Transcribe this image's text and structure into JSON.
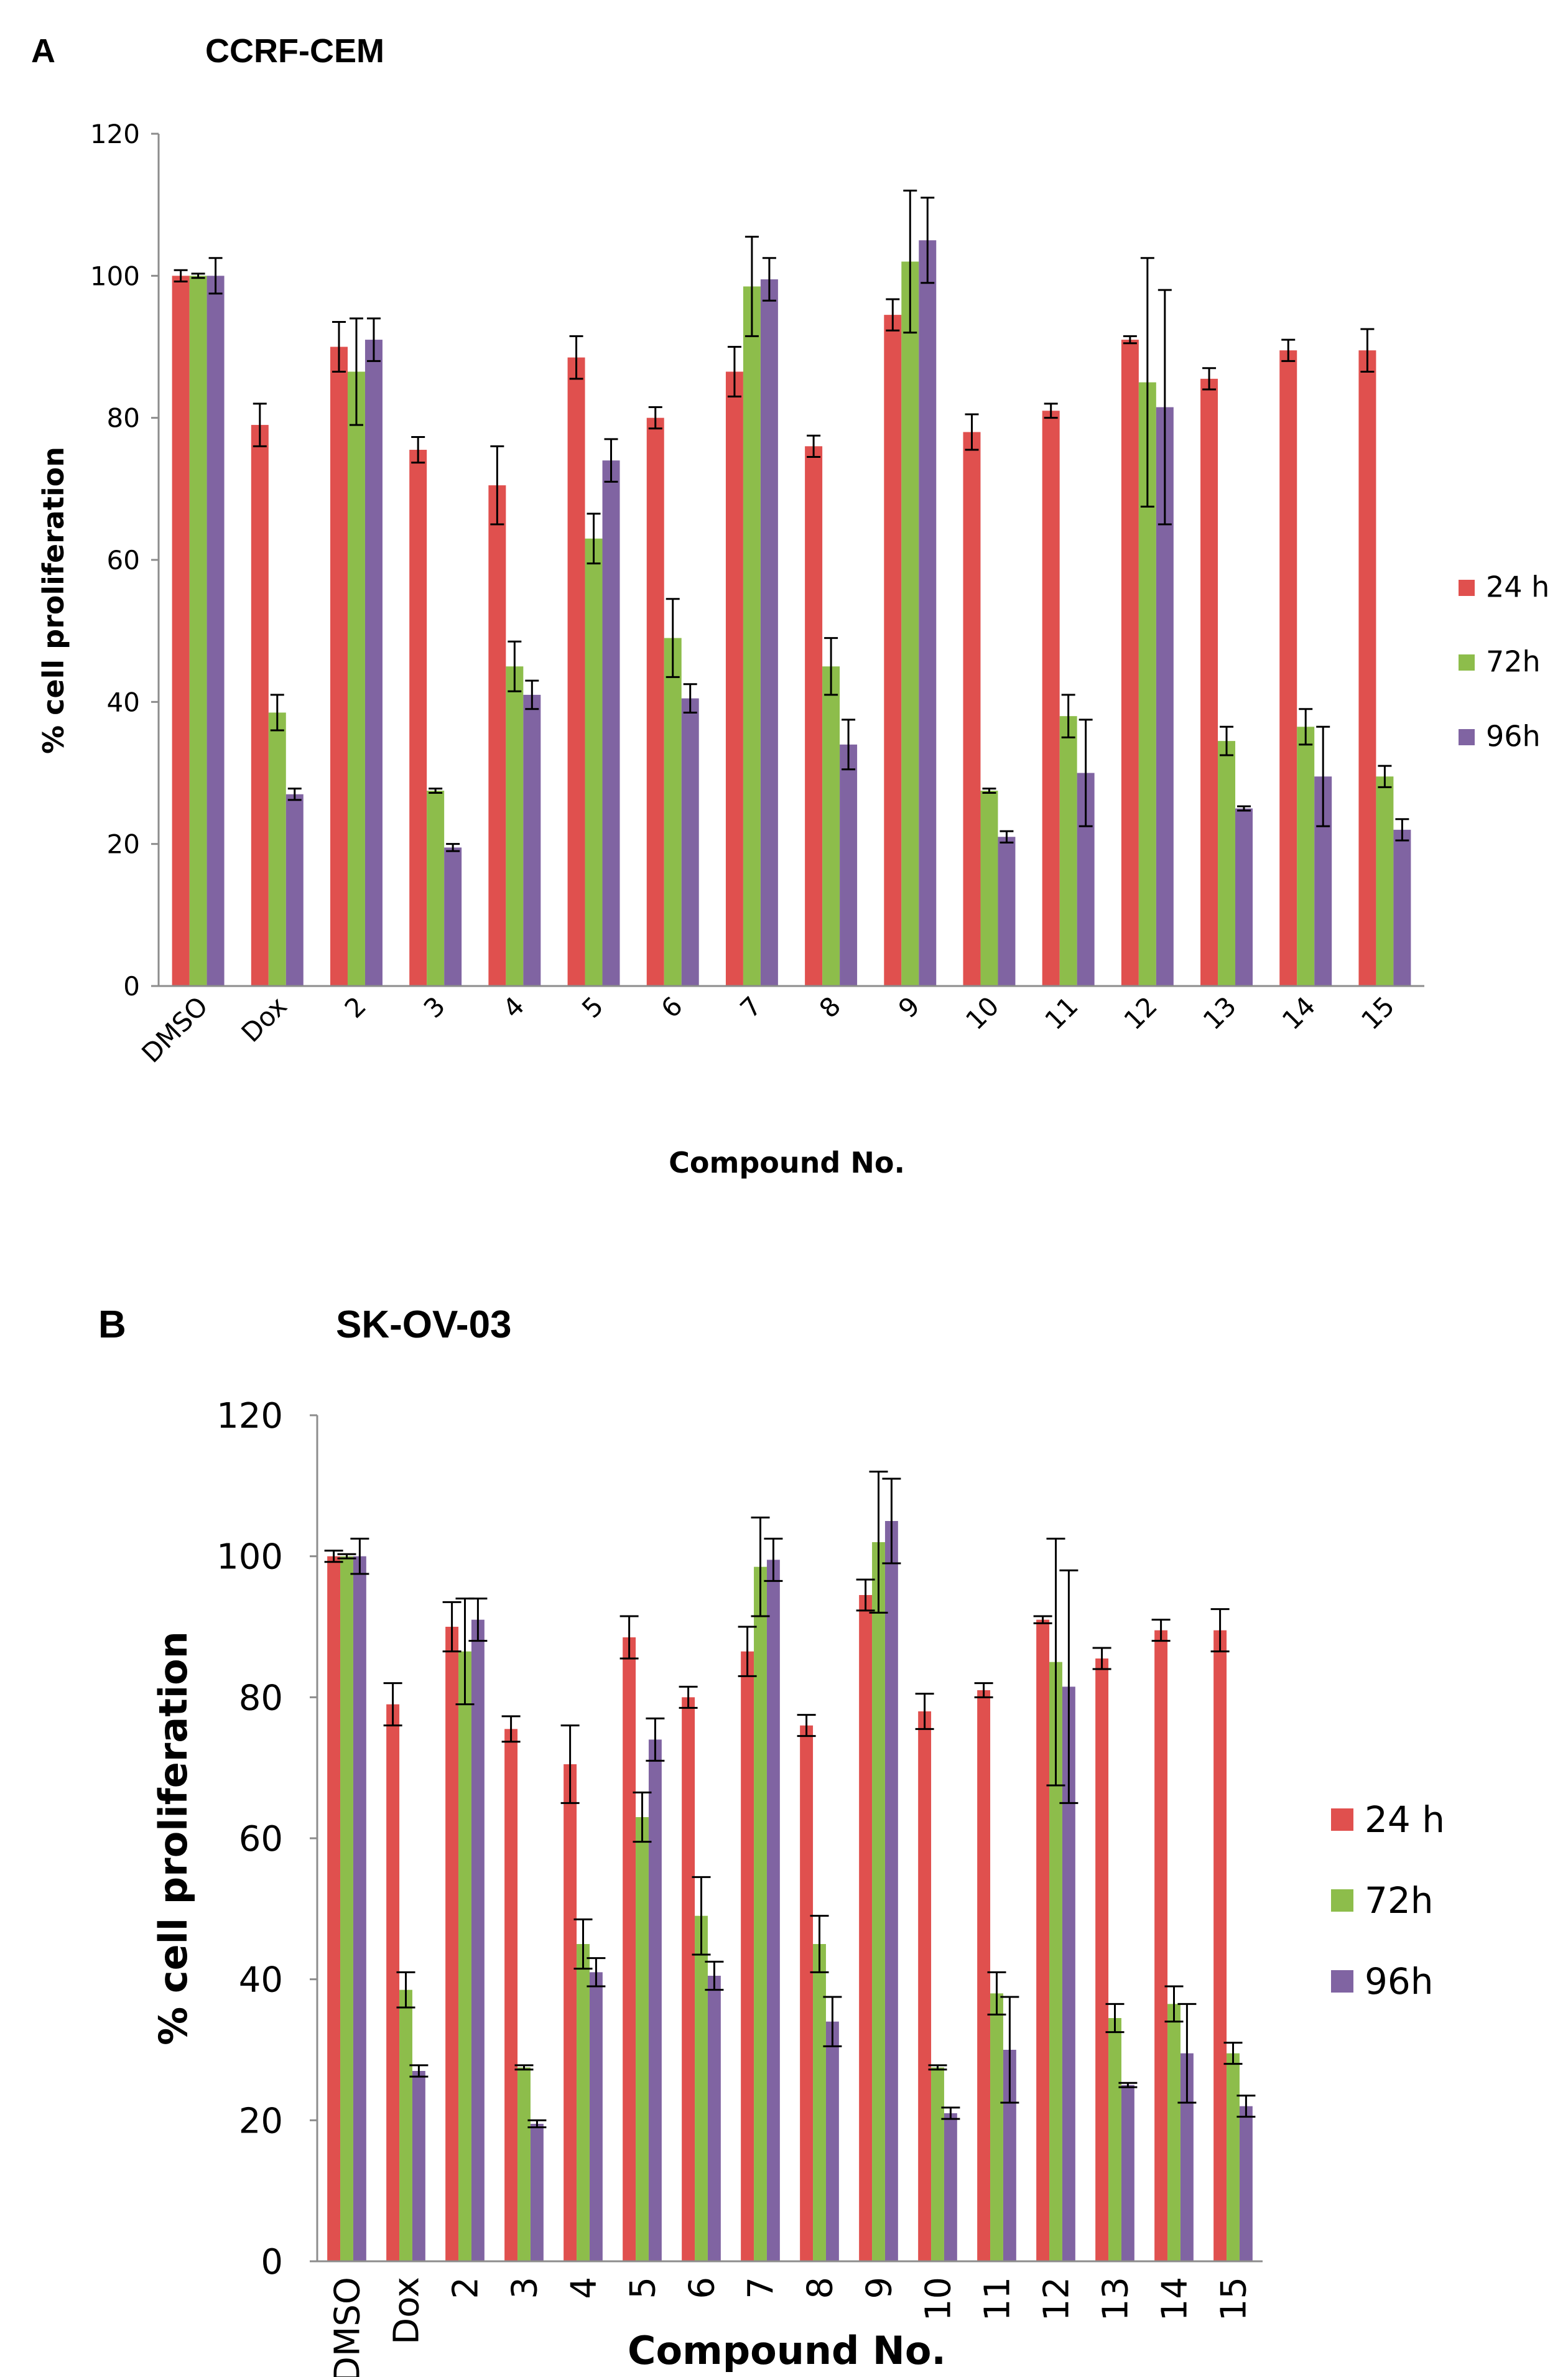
{
  "colors": {
    "24 h": "#e0504e",
    "72h": "#8dbd4b",
    "96h": "#8064a2",
    "axis": "#8c8c8c",
    "err": "#000000"
  },
  "chart_data": [
    {
      "panel": "A",
      "type": "bar",
      "title": "CCRF-CEM",
      "xlabel": "Compound No.",
      "ylabel": "% cell proliferation",
      "ylim": [
        0,
        120
      ],
      "yticks": [
        0,
        20,
        40,
        60,
        80,
        100,
        120
      ],
      "grid": false,
      "legend_position": "right",
      "categories": [
        "DMSO",
        "Dox",
        "2",
        "3",
        "4",
        "5",
        "6",
        "7",
        "8",
        "9",
        "10",
        "11",
        "12",
        "13",
        "14",
        "15"
      ],
      "series": [
        {
          "name": "24 h",
          "values": [
            100,
            79,
            90,
            75.5,
            70.5,
            88.5,
            80,
            86.5,
            76,
            94.5,
            78,
            81,
            91,
            85.5,
            89.5,
            89.5
          ],
          "errors": [
            0.8,
            3,
            3.5,
            1.8,
            5.5,
            3,
            1.5,
            3.5,
            1.5,
            2.2,
            2.5,
            1,
            0.5,
            1.5,
            1.5,
            3
          ]
        },
        {
          "name": "72h",
          "values": [
            100,
            38.5,
            86.5,
            27.5,
            45,
            63,
            49,
            98.5,
            45,
            102,
            27.5,
            38,
            85,
            34.5,
            36.5,
            29.5
          ],
          "errors": [
            0.3,
            2.5,
            7.5,
            0.3,
            3.5,
            3.5,
            5.5,
            7,
            4,
            10,
            0.3,
            3,
            17.5,
            2,
            2.5,
            1.5
          ]
        },
        {
          "name": "96h",
          "values": [
            100,
            27,
            91,
            19.5,
            41,
            74,
            40.5,
            99.5,
            34,
            105,
            21,
            30,
            81.5,
            25,
            29.5,
            22
          ],
          "errors": [
            2.5,
            0.8,
            3,
            0.5,
            2,
            3,
            2,
            3,
            3.5,
            6,
            0.8,
            7.5,
            16.5,
            0.3,
            7,
            1.5
          ]
        }
      ]
    },
    {
      "panel": "B",
      "type": "bar",
      "title": "SK-OV-03",
      "xlabel": "Compound No.",
      "ylabel": "% cell proliferation",
      "ylim": [
        0,
        120
      ],
      "yticks": [
        0,
        20,
        40,
        60,
        80,
        100,
        120
      ],
      "grid": false,
      "legend_position": "right",
      "categories": [
        "DMSO",
        "Dox",
        "2",
        "3",
        "4",
        "5",
        "6",
        "7",
        "8",
        "9",
        "10",
        "11",
        "12",
        "13",
        "14",
        "15"
      ],
      "series": [
        {
          "name": "24 h",
          "values": [
            100,
            79,
            90,
            75.5,
            70.5,
            88.5,
            80,
            86.5,
            76,
            94.5,
            78,
            81,
            91,
            85.5,
            89.5,
            89.5
          ],
          "errors": [
            0.8,
            3,
            3.5,
            1.8,
            5.5,
            3,
            1.5,
            3.5,
            1.5,
            2.2,
            2.5,
            1,
            0.5,
            1.5,
            1.5,
            3
          ]
        },
        {
          "name": "72h",
          "values": [
            100,
            38.5,
            86.5,
            27.5,
            45,
            63,
            49,
            98.5,
            45,
            102,
            27.5,
            38,
            85,
            34.5,
            36.5,
            29.5
          ],
          "errors": [
            0.3,
            2.5,
            7.5,
            0.3,
            3.5,
            3.5,
            5.5,
            7,
            4,
            10,
            0.3,
            3,
            17.5,
            2,
            2.5,
            1.5
          ]
        },
        {
          "name": "96h",
          "values": [
            100,
            27,
            91,
            19.5,
            41,
            74,
            40.5,
            99.5,
            34,
            105,
            21,
            30,
            81.5,
            25,
            29.5,
            22
          ],
          "errors": [
            2.5,
            0.8,
            3,
            0.5,
            2,
            3,
            2,
            3,
            3.5,
            6,
            0.8,
            7.5,
            16.5,
            0.3,
            7,
            1.5
          ]
        }
      ]
    }
  ]
}
